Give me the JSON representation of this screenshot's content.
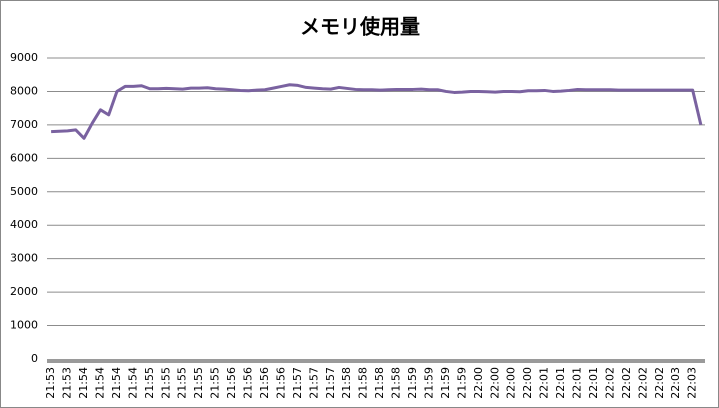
{
  "chart_data": {
    "type": "line",
    "title": "メモリ使用量",
    "categories": [
      "21:53",
      null,
      "21:53",
      null,
      "21:54",
      null,
      "21:54",
      null,
      "21:54",
      null,
      "21:54",
      null,
      "21:55",
      null,
      "21:55",
      null,
      "21:55",
      null,
      "21:55",
      null,
      "21:55",
      null,
      "21:56",
      null,
      "21:56",
      null,
      "21:56",
      null,
      "21:56",
      null,
      "21:57",
      null,
      "21:57",
      null,
      "21:57",
      null,
      "21:58",
      null,
      "21:58",
      null,
      "21:58",
      null,
      "21:58",
      null,
      "21:59",
      null,
      "21:59",
      null,
      "21:59",
      null,
      "21:59",
      null,
      "22:00",
      null,
      "22:00",
      null,
      "22:00",
      null,
      "22:00",
      null,
      "22:01",
      null,
      "22:01",
      null,
      "22:01",
      null,
      "22:01",
      null,
      "22:02",
      null,
      "22:02",
      null,
      "22:02",
      null,
      "22:02",
      null,
      "22:03",
      null,
      "22:03",
      null
    ],
    "series": [
      {
        "color": "#7a62a0",
        "values": [
          6800,
          6810,
          6820,
          6850,
          6600,
          7050,
          7450,
          7300,
          8000,
          8150,
          8150,
          8170,
          8080,
          8080,
          8090,
          8080,
          8070,
          8100,
          8100,
          8110,
          8080,
          8070,
          8050,
          8030,
          8020,
          8040,
          8050,
          8100,
          8150,
          8200,
          8180,
          8120,
          8100,
          8080,
          8070,
          8120,
          8090,
          8060,
          8050,
          8050,
          8040,
          8050,
          8060,
          8060,
          8060,
          8070,
          8050,
          8050,
          8000,
          7970,
          7980,
          8000,
          8000,
          7990,
          7980,
          8000,
          8000,
          7990,
          8020,
          8020,
          8030,
          8000,
          8010,
          8030,
          8060,
          8050,
          8050,
          8050,
          8050,
          8040,
          8040,
          8040,
          8040,
          8040,
          8040,
          8040,
          8040,
          8040,
          8040,
          7000
        ]
      }
    ],
    "ylim": [
      0,
      9000
    ],
    "yticks": [
      0,
      1000,
      2000,
      3000,
      4000,
      5000,
      6000,
      7000,
      8000,
      9000
    ],
    "grid": true
  }
}
